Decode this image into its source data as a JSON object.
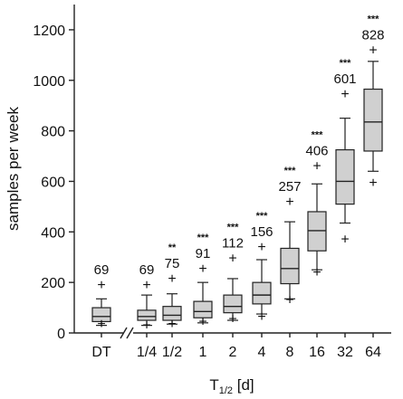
{
  "chart_data": {
    "type": "box",
    "ylabel": "samples per week",
    "xlabel_main": "T",
    "xlabel_sub": "1/2",
    "xlabel_unit": "[d]",
    "ylim": [
      0,
      1300
    ],
    "yticks": [
      0,
      200,
      400,
      600,
      800,
      1000,
      1200
    ],
    "axis_break_after": "DT",
    "colors": {
      "box_fill": "#d0d0d0",
      "stroke": "#222222"
    },
    "categories": [
      "DT",
      "1/4",
      "1/2",
      "1",
      "2",
      "4",
      "8",
      "16",
      "32",
      "64"
    ],
    "boxes": [
      {
        "label": "DT",
        "whisker_low": 30,
        "q1": 45,
        "median": 65,
        "q3": 100,
        "whisker_high": 135,
        "outlier": 190,
        "mean_label": "69",
        "sig": ""
      },
      {
        "label": "1/4",
        "whisker_low": 30,
        "q1": 50,
        "median": 65,
        "q3": 90,
        "whisker_high": 150,
        "outlier": 190,
        "mean_label": "69",
        "sig": ""
      },
      {
        "label": "1/2",
        "whisker_low": 35,
        "q1": 50,
        "median": 70,
        "q3": 105,
        "whisker_high": 155,
        "outlier": 215,
        "mean_label": "75",
        "sig": "**"
      },
      {
        "label": "1",
        "whisker_low": 40,
        "q1": 60,
        "median": 85,
        "q3": 125,
        "whisker_high": 200,
        "outlier": 255,
        "mean_label": "91",
        "sig": "***"
      },
      {
        "label": "2",
        "whisker_low": 50,
        "q1": 80,
        "median": 105,
        "q3": 150,
        "whisker_high": 215,
        "outlier": 295,
        "mean_label": "112",
        "sig": "***"
      },
      {
        "label": "4",
        "whisker_low": 75,
        "q1": 115,
        "median": 150,
        "q3": 200,
        "whisker_high": 290,
        "outlier": 340,
        "mean_label": "156",
        "sig": "***"
      },
      {
        "label": "8",
        "whisker_low": 135,
        "q1": 195,
        "median": 255,
        "q3": 335,
        "whisker_high": 440,
        "outlier": 520,
        "mean_label": "257",
        "sig": "***"
      },
      {
        "label": "16",
        "whisker_low": 250,
        "q1": 325,
        "median": 405,
        "q3": 480,
        "whisker_high": 590,
        "outlier": 660,
        "mean_label": "406",
        "sig": "***"
      },
      {
        "label": "32",
        "whisker_low": 435,
        "q1": 510,
        "median": 600,
        "q3": 725,
        "whisker_high": 850,
        "outlier": 945,
        "mean_label": "601",
        "sig": "***"
      },
      {
        "label": "64",
        "whisker_low": 640,
        "q1": 720,
        "median": 835,
        "q3": 965,
        "whisker_high": 1075,
        "outlier": 1120,
        "mean_label": "828",
        "sig": "***"
      }
    ],
    "low_outliers": [
      {
        "label": "DT",
        "value": 35
      },
      {
        "label": "1/4",
        "value": 30
      },
      {
        "label": "1/2",
        "value": 35
      },
      {
        "label": "1",
        "value": 45
      },
      {
        "label": "2",
        "value": 55
      },
      {
        "label": "4",
        "value": 65
      },
      {
        "label": "8",
        "value": 130
      },
      {
        "label": "16",
        "value": 240
      },
      {
        "label": "32",
        "value": 370
      },
      {
        "label": "64",
        "value": 595
      }
    ]
  }
}
